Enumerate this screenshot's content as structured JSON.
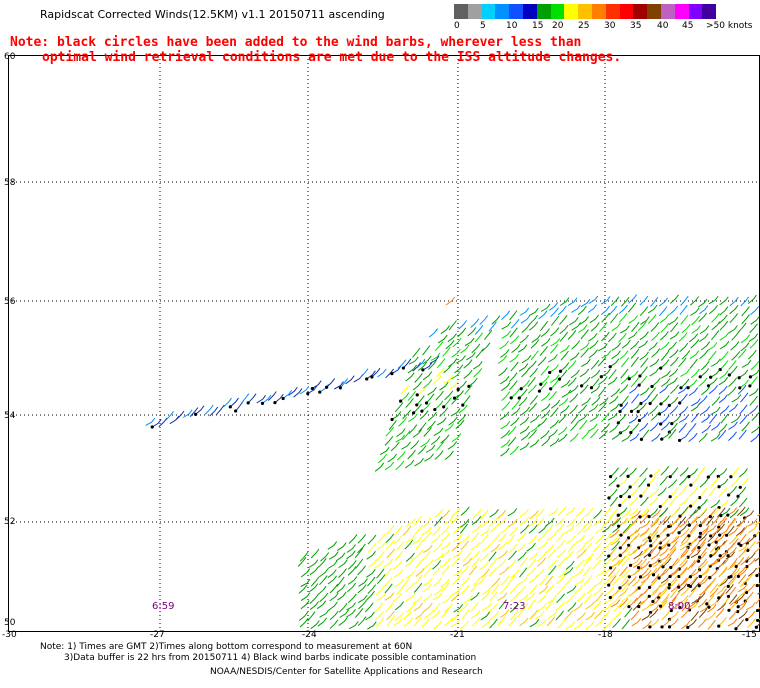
{
  "title": "Rapidscat Corrected Winds(12.5KM) v1.1 20150711 ascending",
  "note": {
    "line1": "Note: black circles have been added to the wind barbs, wherever less than",
    "line2": "optimal wind retrieval conditions are met due to the ISS altitude changes."
  },
  "legend": {
    "colors": [
      "#606060",
      "#a0a0a0",
      "#00d0ff",
      "#0090ff",
      "#1050ff",
      "#0000c0",
      "#00a000",
      "#00e000",
      "#ffff00",
      "#ffc000",
      "#ff8000",
      "#ff3000",
      "#ff0000",
      "#a00000",
      "#804000",
      "#c060c0",
      "#ff00ff",
      "#8000ff",
      "#4000a0"
    ],
    "labels": [
      "0",
      "5",
      "10",
      "15",
      "20",
      "25",
      "30",
      "35",
      "40",
      "45",
      ">50 knots"
    ]
  },
  "map": {
    "y_ticks": [
      "60",
      "58",
      "56",
      "54",
      "52",
      "50"
    ],
    "x_ticks": [
      "-30",
      "-27",
      "-24",
      "-21",
      "-18",
      "-15"
    ],
    "times": [
      "6:59",
      "7:23",
      "8:00"
    ]
  },
  "footer": {
    "line1": "Note: 1) Times are GMT 2)Times along bottom correspond to measurement at 60N",
    "line2": "3)Data buffer is 22 hrs from 20150711 4) Black wind barbs indicate possible contamination",
    "line3": "NOAA/NESDIS/Center for Satellite Applications and Research"
  }
}
